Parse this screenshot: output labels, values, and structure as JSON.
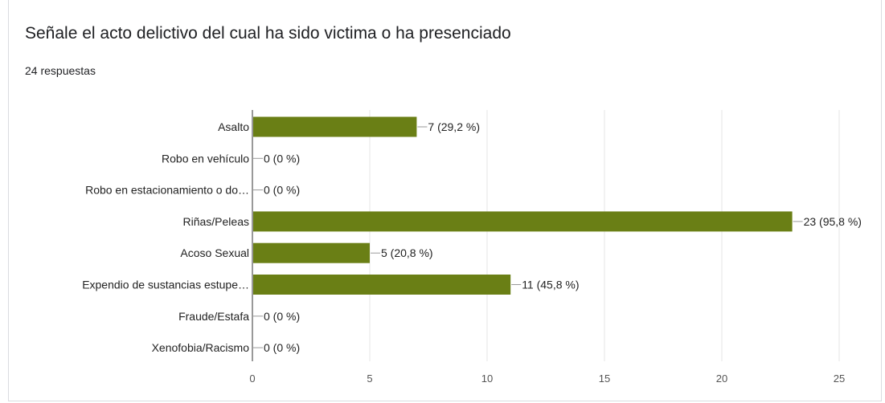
{
  "card": {
    "title": "Señale el acto delictivo del cual ha sido victima o ha presenciado",
    "subtitle": "24 respuestas"
  },
  "colors": {
    "bar": "#6a7f15",
    "axis": "#333333",
    "grid": "#e6e6e6",
    "leader": "#999999"
  },
  "chart_data": {
    "type": "bar",
    "orientation": "horizontal",
    "categories": [
      "Asalto",
      "Robo en vehículo",
      "Robo en estacionamiento o do…",
      "Riñas/Peleas",
      "Acoso Sexual",
      "Expendio de sustancias estupe…",
      "Fraude/Estafa",
      "Xenofobia/Racismo"
    ],
    "values": [
      7,
      0,
      0,
      23,
      5,
      11,
      0,
      0
    ],
    "data_labels": [
      "7 (29,2 %)",
      "0 (0 %)",
      "0 (0 %)",
      "23 (95,8 %)",
      "5 (20,8 %)",
      "11 (45,8 %)",
      "0 (0 %)",
      "0 (0 %)"
    ],
    "xlim": [
      0,
      25
    ],
    "xticks": [
      0,
      5,
      10,
      15,
      20,
      25
    ],
    "grid": true
  }
}
